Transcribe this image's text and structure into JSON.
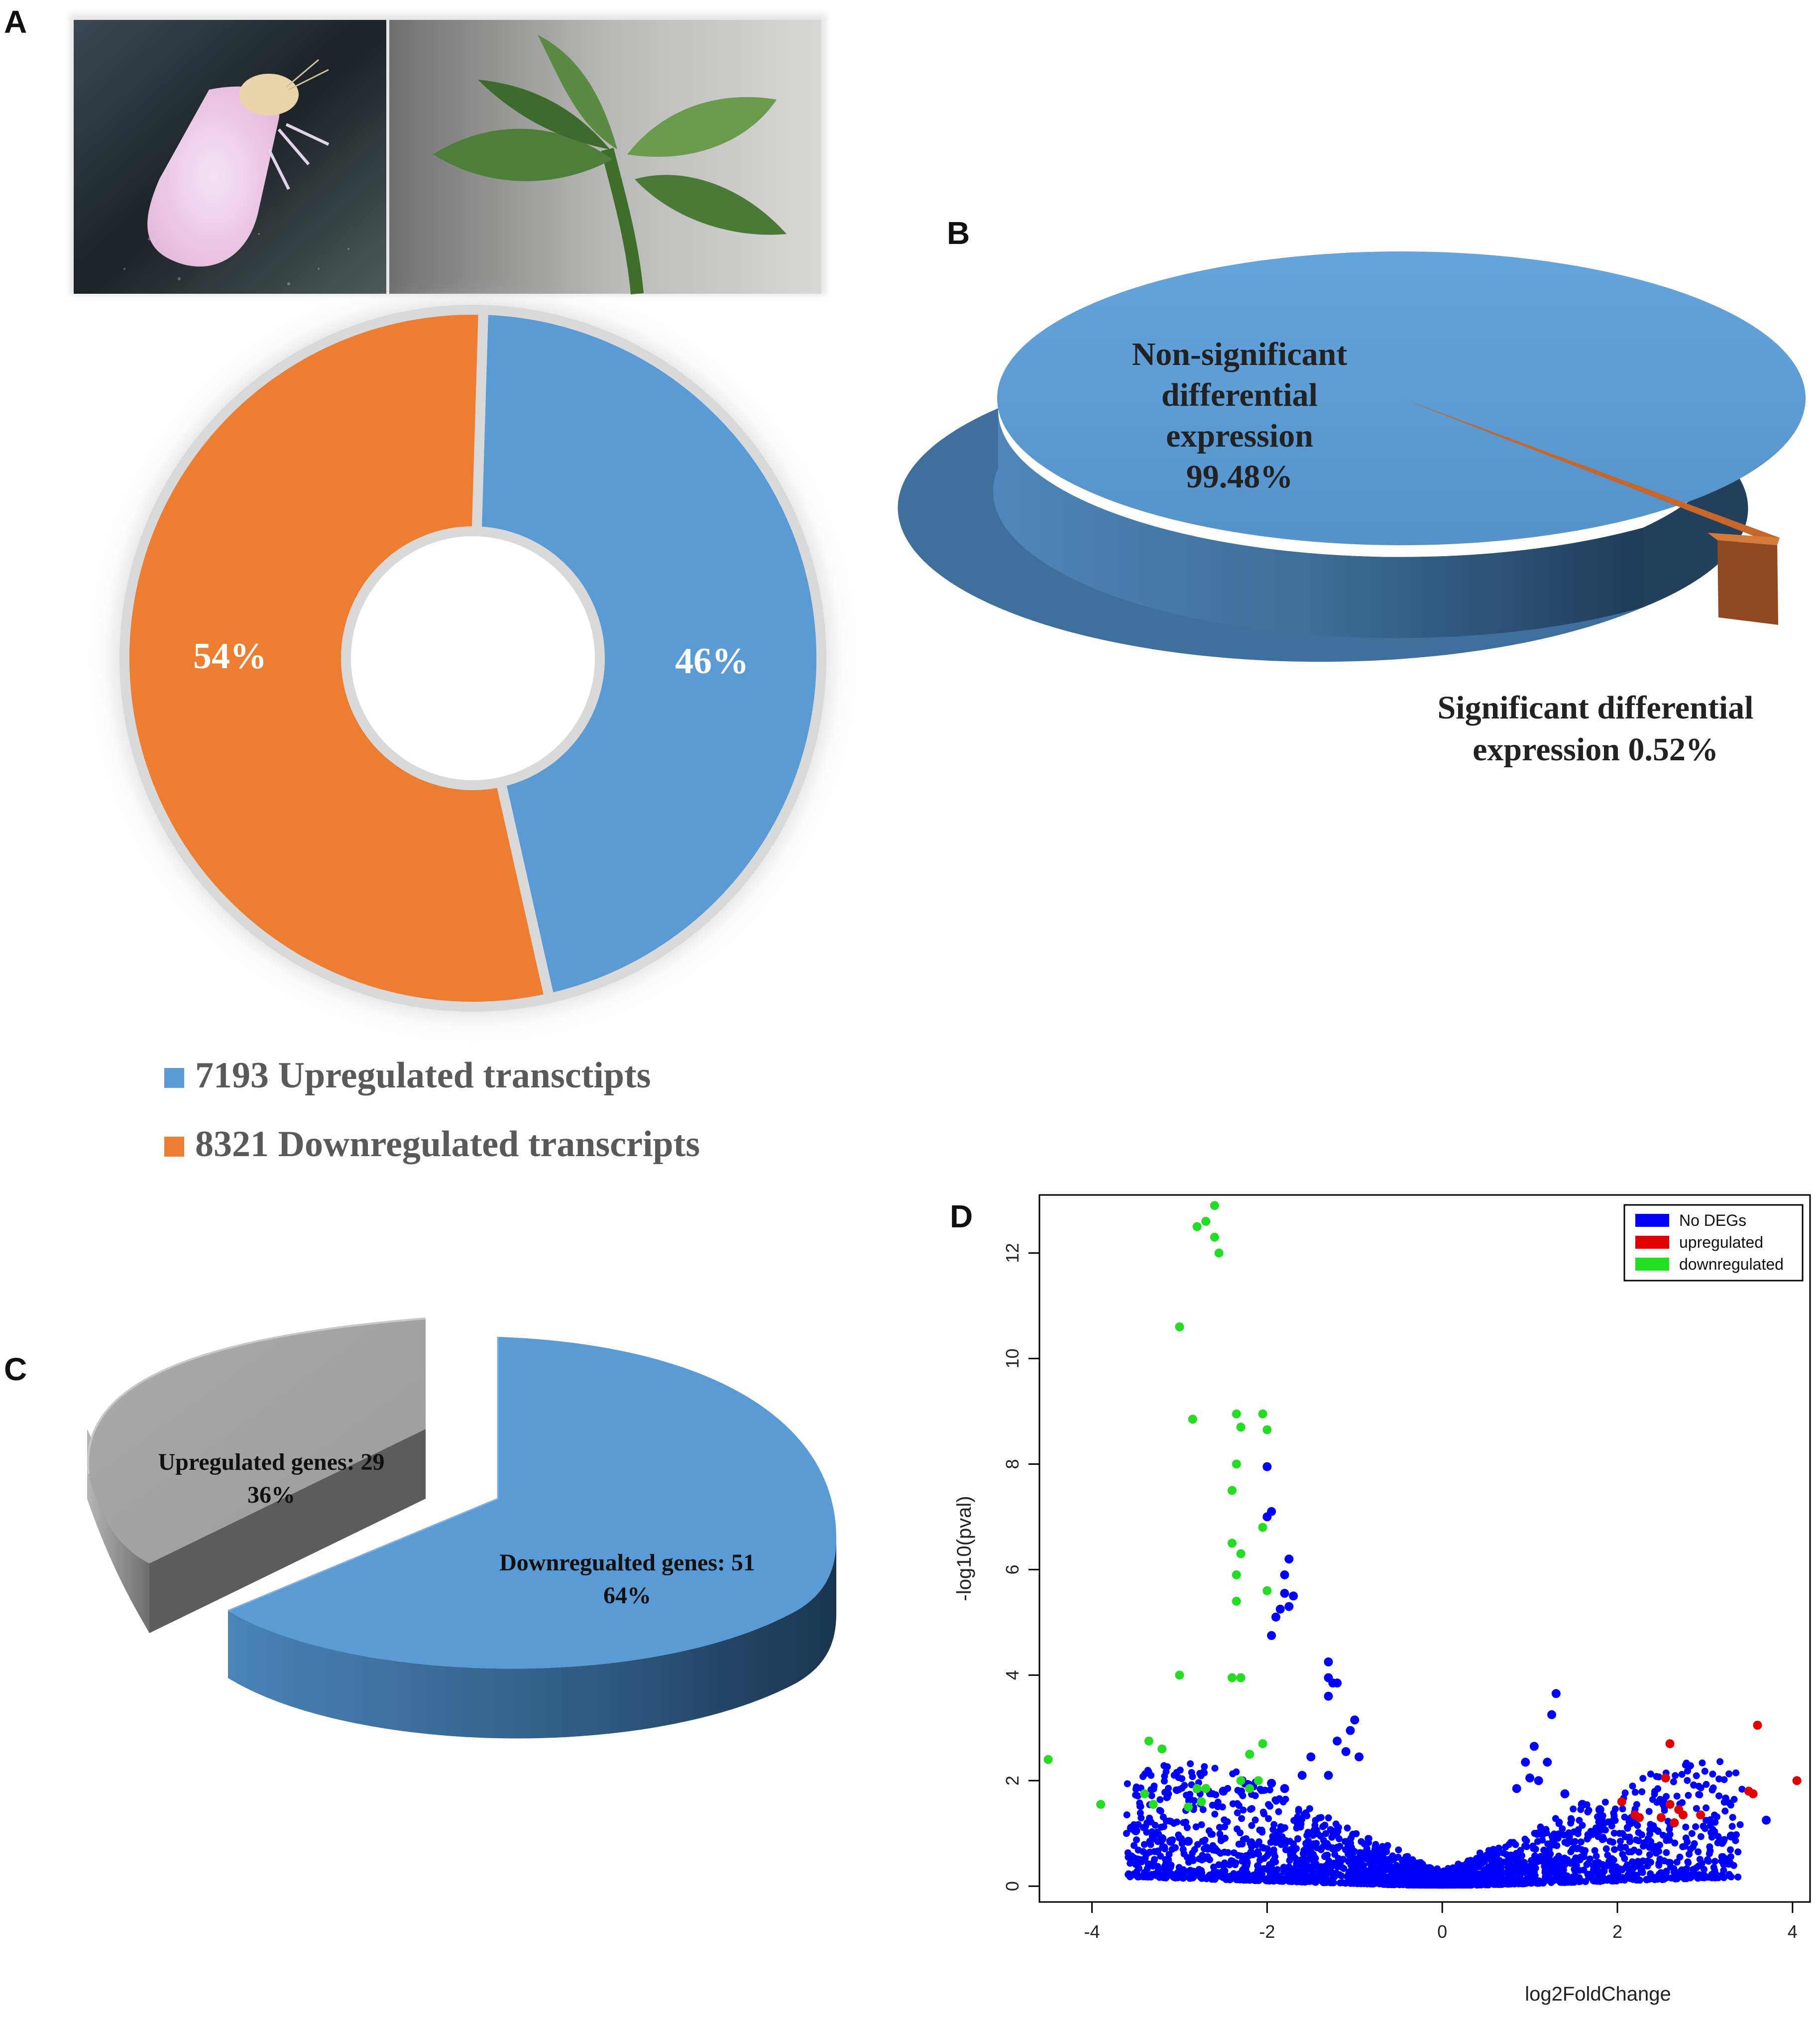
{
  "panels": {
    "a": {
      "letter": "A"
    },
    "b": {
      "letter": "B"
    },
    "c": {
      "letter": "C"
    },
    "d": {
      "letter": "D"
    }
  },
  "photos": {
    "whitefly": {
      "name": "whitefly-photo",
      "description_icon": "insect-icon"
    },
    "plant": {
      "name": "pepper-plant-photo",
      "description_icon": "leaf-icon"
    }
  },
  "colors": {
    "blue": "#5B9BD5",
    "orange": "#ED7D31",
    "gray": "#A5A5A5",
    "brown": "#8B4513",
    "volcano_none": "#0000FF",
    "volcano_up": "#E00000",
    "volcano_down": "#22DD22"
  },
  "chart_data": [
    {
      "id": "A",
      "type": "pie",
      "subtype": "donut",
      "title": "",
      "slices": [
        {
          "name": "Upregulated",
          "value": 46,
          "label": "46%",
          "color": "#5B9BD5"
        },
        {
          "name": "Downregulated",
          "value": 54,
          "label": "54%",
          "color": "#ED7D31"
        }
      ],
      "legend": [
        {
          "label": "7193 Upregulated transctipts",
          "color": "#5B9BD5"
        },
        {
          "label": "8321 Downregulated transcripts",
          "color": "#ED7D31"
        }
      ],
      "legend_position": "bottom"
    },
    {
      "id": "B",
      "type": "pie",
      "subtype": "3d",
      "title": "",
      "slices": [
        {
          "name": "Non-significant differential expression",
          "value": 99.48,
          "label_lines": [
            "Non-significant",
            "differential",
            "expression",
            "99.48%"
          ],
          "color": "#5B9BD5"
        },
        {
          "name": "Significant differential expression",
          "value": 0.52,
          "label_lines": [
            "Significant differential",
            "expression 0.52%"
          ],
          "color": "#ED7D31"
        }
      ]
    },
    {
      "id": "C",
      "type": "pie",
      "subtype": "3d-exploded",
      "title": "",
      "slices": [
        {
          "name": "Upregulated genes",
          "value": 29,
          "percent": 36,
          "label_lines": [
            "Upregulated genes: 29",
            "36%"
          ],
          "color": "#A5A5A5"
        },
        {
          "name": "Downregualted genes",
          "value": 51,
          "percent": 64,
          "label_lines": [
            "Downregualted genes: 51",
            "64%"
          ],
          "color": "#5B9BD5"
        }
      ]
    },
    {
      "id": "D",
      "type": "scatter",
      "title": "",
      "xlabel": "log2FoldChange",
      "ylabel": "-log10(pval)",
      "xlim": [
        -4.6,
        4.2
      ],
      "ylim": [
        -0.3,
        13.1
      ],
      "xticks": [
        -4,
        -2,
        0,
        2,
        4
      ],
      "yticks": [
        0,
        2,
        4,
        6,
        8,
        10,
        12
      ],
      "legend_position": "top-right",
      "legend": [
        {
          "label": "No DEGs",
          "color": "#0000FF"
        },
        {
          "label": "upregulated",
          "color": "#E00000"
        },
        {
          "label": "downregulated",
          "color": "#22DD22"
        }
      ],
      "series": [
        {
          "name": "downregulated",
          "color": "#22DD22",
          "points": [
            [
              -2.6,
              12.9
            ],
            [
              -2.8,
              12.5
            ],
            [
              -2.7,
              12.6
            ],
            [
              -2.6,
              12.3
            ],
            [
              -2.55,
              12.0
            ],
            [
              -3.0,
              10.6
            ],
            [
              -2.85,
              8.85
            ],
            [
              -2.35,
              8.95
            ],
            [
              -2.05,
              8.95
            ],
            [
              -2.3,
              8.7
            ],
            [
              -2.0,
              8.65
            ],
            [
              -2.35,
              8.0
            ],
            [
              -2.4,
              7.5
            ],
            [
              -2.05,
              6.8
            ],
            [
              -2.4,
              6.5
            ],
            [
              -2.3,
              6.3
            ],
            [
              -2.35,
              5.9
            ],
            [
              -2.0,
              5.6
            ],
            [
              -2.35,
              5.4
            ],
            [
              -2.3,
              3.95
            ],
            [
              -2.4,
              3.95
            ],
            [
              -3.0,
              4.0
            ],
            [
              -4.5,
              2.4
            ],
            [
              -3.9,
              1.55
            ],
            [
              -3.35,
              2.75
            ],
            [
              -3.4,
              1.75
            ],
            [
              -3.3,
              1.55
            ],
            [
              -2.8,
              1.85
            ],
            [
              -2.7,
              1.85
            ],
            [
              -2.9,
              1.5
            ],
            [
              -2.75,
              1.6
            ],
            [
              -2.3,
              2.0
            ],
            [
              -2.2,
              2.5
            ],
            [
              -2.05,
              2.7
            ],
            [
              -2.2,
              1.85
            ],
            [
              -2.1,
              2.0
            ],
            [
              -3.2,
              2.6
            ]
          ]
        },
        {
          "name": "upregulated",
          "color": "#E00000",
          "points": [
            [
              3.6,
              3.05
            ],
            [
              2.6,
              2.7
            ],
            [
              4.05,
              2.0
            ],
            [
              3.5,
              1.8
            ],
            [
              3.55,
              1.75
            ],
            [
              2.55,
              2.05
            ],
            [
              2.6,
              1.55
            ],
            [
              2.7,
              1.45
            ],
            [
              2.2,
              1.35
            ],
            [
              2.25,
              1.3
            ],
            [
              2.05,
              1.6
            ],
            [
              2.5,
              1.3
            ],
            [
              2.75,
              1.35
            ],
            [
              2.95,
              1.35
            ],
            [
              2.65,
              1.2
            ]
          ]
        },
        {
          "name": "No DEGs",
          "color": "#0000FF",
          "points": [
            [
              -2.0,
              7.95
            ],
            [
              -1.95,
              7.1
            ],
            [
              -2.0,
              7.0
            ],
            [
              -1.75,
              6.2
            ],
            [
              -1.8,
              5.9
            ],
            [
              -1.8,
              5.55
            ],
            [
              -1.7,
              5.5
            ],
            [
              -1.75,
              5.3
            ],
            [
              -1.9,
              5.1
            ],
            [
              -1.95,
              4.75
            ],
            [
              -1.85,
              5.25
            ],
            [
              -1.3,
              4.25
            ],
            [
              -1.3,
              3.95
            ],
            [
              -1.2,
              3.85
            ],
            [
              -1.25,
              3.85
            ],
            [
              -1.0,
              3.15
            ],
            [
              -1.05,
              2.95
            ],
            [
              -1.2,
              2.75
            ],
            [
              -1.1,
              2.55
            ],
            [
              -0.95,
              2.45
            ],
            [
              -1.3,
              2.1
            ],
            [
              -1.5,
              2.45
            ],
            [
              -1.6,
              2.1
            ],
            [
              -1.8,
              1.85
            ],
            [
              -1.95,
              1.95
            ],
            [
              -2.5,
              1.8
            ],
            [
              -1.3,
              3.6
            ],
            [
              1.3,
              3.65
            ],
            [
              1.25,
              3.25
            ],
            [
              1.05,
              2.65
            ],
            [
              0.95,
              2.35
            ],
            [
              1.2,
              2.35
            ],
            [
              1.0,
              2.05
            ],
            [
              1.4,
              1.75
            ],
            [
              1.1,
              2.0
            ],
            [
              0.85,
              1.85
            ],
            [
              1.6,
              1.55
            ],
            [
              1.8,
              1.45
            ],
            [
              3.7,
              1.25
            ],
            [
              3.3,
              0.95
            ],
            [
              3.2,
              0.85
            ],
            [
              -3.5,
              1.05
            ],
            [
              -3.55,
              1.1
            ],
            [
              -3.3,
              0.95
            ],
            [
              -3.2,
              0.9
            ],
            [
              -3.1,
              0.85
            ],
            [
              -2.9,
              0.85
            ],
            [
              -2.6,
              0.7
            ]
          ]
        }
      ]
    }
  ]
}
